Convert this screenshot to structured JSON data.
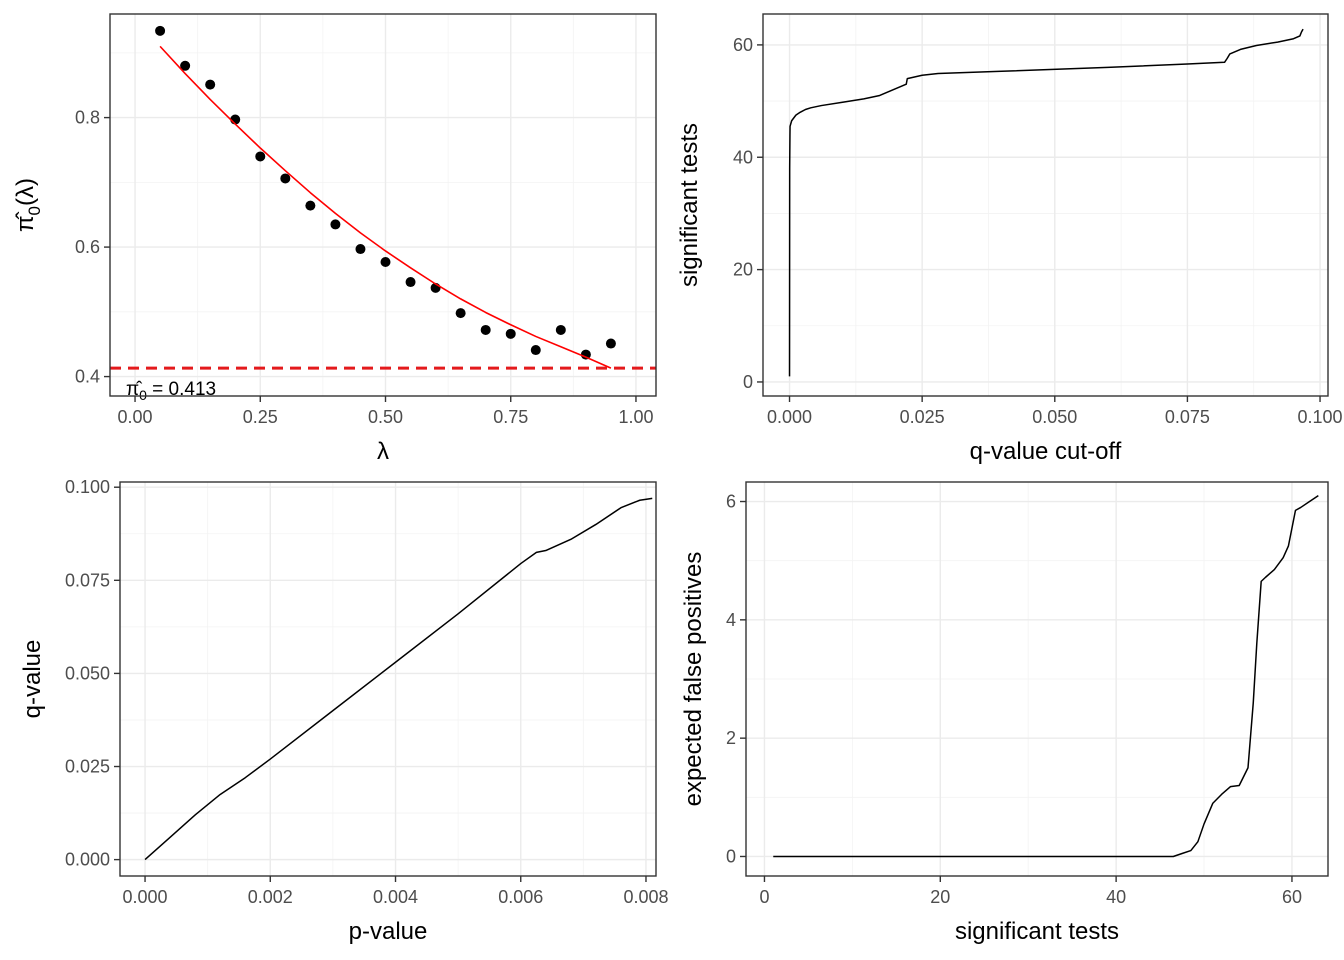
{
  "chart_data": [
    {
      "type": "scatter",
      "xlabel": "λ",
      "ylabel_main": "π̂",
      "ylabel_sub": "0",
      "ylabel_tail": "(λ)",
      "xlim": [
        -0.05,
        1.04
      ],
      "ylim": [
        0.37,
        0.96
      ],
      "xticks": [
        0,
        0.25,
        0.5,
        0.75,
        1
      ],
      "xtick_labels": [
        "0.00",
        "0.25",
        "0.50",
        "0.75",
        "1.00"
      ],
      "yticks": [
        0.4,
        0.6,
        0.8
      ],
      "ytick_labels": [
        "0.4",
        "0.6",
        "0.8"
      ],
      "grid": true,
      "series": [
        {
          "x": [
            0.05,
            0.1,
            0.15,
            0.2,
            0.25,
            0.3,
            0.35,
            0.4,
            0.45,
            0.5,
            0.55,
            0.6,
            0.65,
            0.7,
            0.75,
            0.8,
            0.85,
            0.9,
            0.95
          ],
          "y": [
            0.934,
            0.88,
            0.851,
            0.797,
            0.74,
            0.706,
            0.664,
            0.635,
            0.597,
            0.577,
            0.546,
            0.537,
            0.498,
            0.472,
            0.466,
            0.441,
            0.472,
            0.434,
            0.451
          ],
          "color": "#000000"
        },
        {
          "x": [
            0.05,
            0.1,
            0.15,
            0.2,
            0.25,
            0.3,
            0.35,
            0.4,
            0.45,
            0.5,
            0.55,
            0.6,
            0.65,
            0.7,
            0.75,
            0.8,
            0.85,
            0.9,
            0.95
          ],
          "y": [
            0.91,
            0.868,
            0.828,
            0.79,
            0.753,
            0.718,
            0.684,
            0.652,
            0.622,
            0.594,
            0.568,
            0.543,
            0.52,
            0.499,
            0.48,
            0.462,
            0.446,
            0.43,
            0.413
          ],
          "color": "#ff0000"
        }
      ],
      "hline": {
        "y": 0.413,
        "color": "#e41a1c"
      },
      "annotation": {
        "pi": "π̂",
        "sub": "0",
        "text": " = 0.413"
      }
    },
    {
      "type": "line",
      "xlabel": "q-value cut-off",
      "ylabel": "significant tests",
      "xlim": [
        -0.005,
        0.1015
      ],
      "ylim": [
        -2.5,
        65.5
      ],
      "xticks": [
        0,
        0.025,
        0.05,
        0.075,
        0.1
      ],
      "xtick_labels": [
        "0.000",
        "0.025",
        "0.050",
        "0.075",
        "0.100"
      ],
      "yticks": [
        0,
        20,
        40,
        60
      ],
      "ytick_labels": [
        "0",
        "20",
        "40",
        "60"
      ],
      "grid": true,
      "series": [
        {
          "x": [
            0.0,
            3e-05,
            8e-05,
            0.0001,
            0.0004,
            0.0012,
            0.002,
            0.003,
            0.004,
            0.006,
            0.01,
            0.014,
            0.017,
            0.019,
            0.021,
            0.022,
            0.0222,
            0.025,
            0.028,
            0.04,
            0.06,
            0.075,
            0.082,
            0.0825,
            0.083,
            0.085,
            0.088,
            0.092,
            0.095,
            0.0962,
            0.0965,
            0.0968
          ],
          "y": [
            1,
            38,
            44,
            45.5,
            46.5,
            47.5,
            48,
            48.5,
            48.8,
            49.2,
            49.8,
            50.4,
            51.0,
            51.8,
            52.6,
            53.0,
            54.0,
            54.6,
            54.9,
            55.3,
            56.0,
            56.6,
            56.9,
            57.6,
            58.4,
            59.2,
            59.9,
            60.5,
            61.1,
            61.6,
            62.3,
            62.8
          ],
          "color": "#000000"
        }
      ]
    },
    {
      "type": "line",
      "xlabel": "p-value",
      "ylabel": "q-value",
      "xlim": [
        -0.0004,
        0.00816
      ],
      "ylim": [
        -0.0044,
        0.1014
      ],
      "xticks": [
        0,
        0.002,
        0.004,
        0.006,
        0.008
      ],
      "xtick_labels": [
        "0.000",
        "0.002",
        "0.004",
        "0.006",
        "0.008"
      ],
      "yticks": [
        0,
        0.025,
        0.05,
        0.075,
        0.1
      ],
      "ytick_labels": [
        "0.000",
        "0.025",
        "0.050",
        "0.075",
        "0.100"
      ],
      "grid": true,
      "series": [
        {
          "x": [
            0.0,
            0.0004,
            0.0008,
            0.0012,
            0.0016,
            0.002,
            0.003,
            0.004,
            0.005,
            0.006,
            0.00625,
            0.0064,
            0.0068,
            0.0072,
            0.0076,
            0.0079,
            0.0081
          ],
          "y": [
            0.0,
            0.006,
            0.012,
            0.0175,
            0.022,
            0.027,
            0.04,
            0.053,
            0.066,
            0.0795,
            0.0825,
            0.083,
            0.086,
            0.09,
            0.0945,
            0.0965,
            0.097
          ],
          "color": "#000000"
        }
      ]
    },
    {
      "type": "line",
      "xlabel": "significant tests",
      "ylabel": "expected false positives",
      "xlim": [
        -2.1,
        64.1
      ],
      "ylim": [
        -0.33,
        6.33
      ],
      "xticks": [
        0,
        20,
        40,
        60
      ],
      "xtick_labels": [
        "0",
        "20",
        "40",
        "60"
      ],
      "yticks": [
        0,
        2,
        4,
        6
      ],
      "ytick_labels": [
        "0",
        "2",
        "4",
        "6"
      ],
      "grid": true,
      "series": [
        {
          "x": [
            1,
            10,
            20,
            30,
            40,
            46.5,
            47.5,
            48.5,
            49.3,
            50,
            51,
            52,
            53,
            54,
            55,
            55.6,
            56,
            56.5,
            57,
            58,
            59,
            59.6,
            60,
            60.4,
            61,
            62,
            63
          ],
          "y": [
            0,
            0,
            0,
            0,
            0,
            0,
            0.05,
            0.1,
            0.25,
            0.55,
            0.9,
            1.05,
            1.18,
            1.2,
            1.5,
            2.6,
            3.6,
            4.65,
            4.72,
            4.85,
            5.05,
            5.25,
            5.55,
            5.85,
            5.9,
            6.0,
            6.1
          ],
          "color": "#000000"
        }
      ]
    }
  ]
}
